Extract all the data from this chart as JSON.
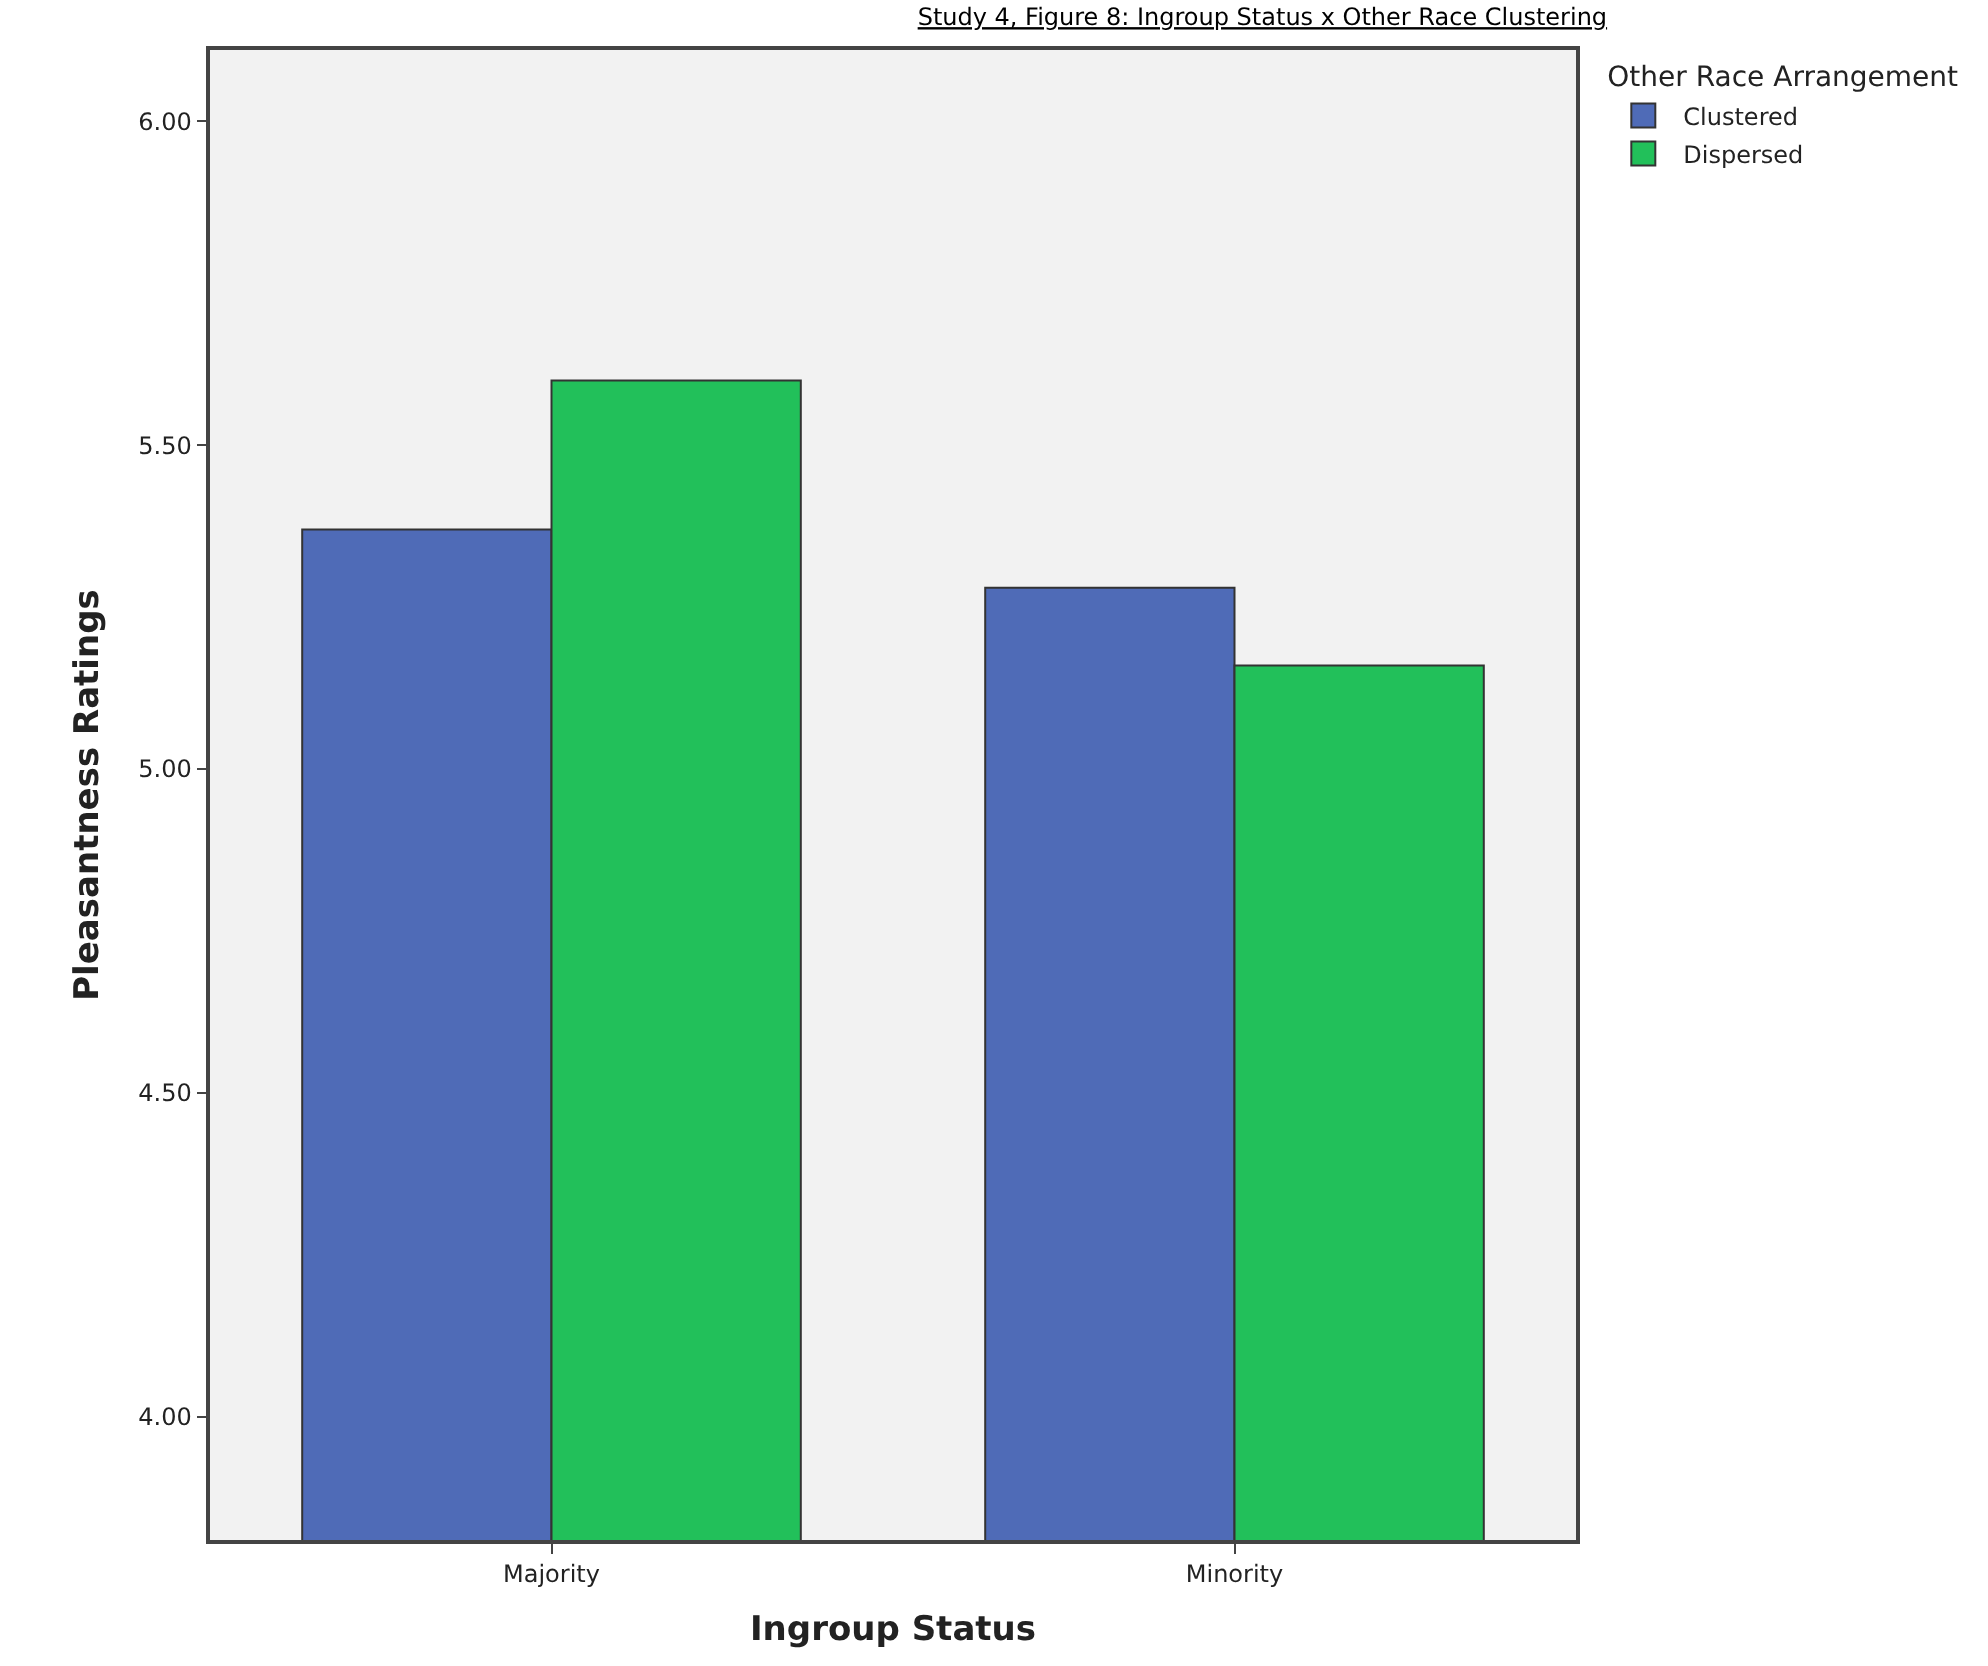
{
  "chart_data": {
    "type": "bar",
    "title": "Study 4, Figure 8: Ingroup Status x Other Race Clustering",
    "xlabel": "Ingroup Status",
    "ylabel": "Pleasantness Ratings",
    "legend_title": "Other Race Arrangement",
    "categories": [
      "Majority",
      "Minority"
    ],
    "series": [
      {
        "name": "Clustered",
        "color": "#4f6bb7",
        "values": [
          5.37,
          5.28
        ]
      },
      {
        "name": "Dispersed",
        "color": "#22c05a",
        "values": [
          5.6,
          5.16
        ]
      }
    ],
    "ylim": [
      3.81,
      6.11
    ],
    "yticks": [
      {
        "value": 4,
        "label": "4.00"
      },
      {
        "value": 4.5,
        "label": "4.50"
      },
      {
        "value": 5,
        "label": "5.00"
      },
      {
        "value": 5.5,
        "label": "5.50"
      },
      {
        "value": 6,
        "label": "6.00"
      }
    ],
    "grid": false,
    "legend": "top right"
  }
}
